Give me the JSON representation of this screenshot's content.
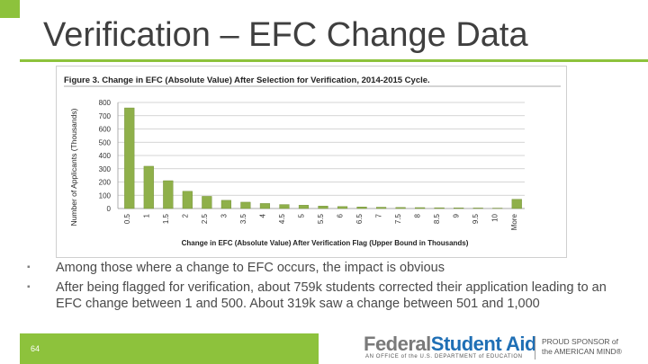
{
  "slide": {
    "title": "Verification – EFC Change Data",
    "page_number": "64"
  },
  "bullets": [
    "Among those where a change to EFC occurs, the impact is obvious",
    "After being flagged for verification, about 759k students corrected their application leading to an EFC change between 1 and 500. About 319k saw a change between 501 and 1,000"
  ],
  "footer": {
    "logo_federal": "Federal",
    "logo_student_aid": "Student Aid",
    "logo_tagline": "AN OFFICE of the U.S. DEPARTMENT of EDUCATION",
    "sponsor_text": "PROUD SPONSOR of\nthe AMERICAN MIND®"
  },
  "colors": {
    "accent": "#8dc23c",
    "bar": "#8fb04a",
    "title_text": "#3f3f3f"
  },
  "chart_data": {
    "type": "bar",
    "title": "Figure 3. Change in EFC (Absolute Value) After Selection for Verification, 2014-2015 Cycle.",
    "xlabel": "Change in EFC (Absolute Value) After Verification Flag (Upper Bound in Thousands)",
    "ylabel": "Number of Applicants (Thousands)",
    "ylim": [
      0,
      800
    ],
    "yticks": [
      0,
      100,
      200,
      300,
      400,
      500,
      600,
      700,
      800
    ],
    "grid": true,
    "categories": [
      "0.5",
      "1",
      "1.5",
      "2",
      "2.5",
      "3",
      "3.5",
      "4",
      "4.5",
      "5",
      "5.5",
      "6",
      "6.5",
      "7",
      "7.5",
      "8",
      "8.5",
      "9",
      "9.5",
      "10",
      "More"
    ],
    "values": [
      759,
      319,
      210,
      130,
      92,
      62,
      48,
      38,
      30,
      25,
      19,
      15,
      12,
      10,
      8,
      7,
      6,
      5,
      4,
      3,
      70
    ]
  }
}
